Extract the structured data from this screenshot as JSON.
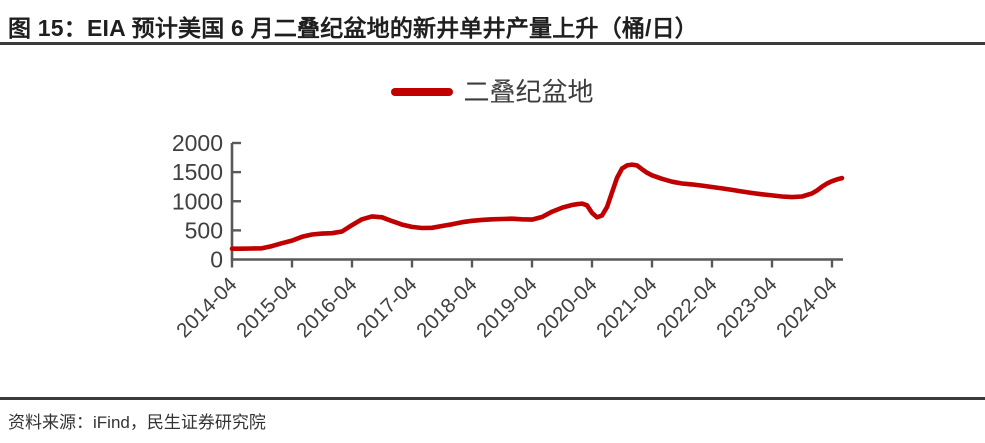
{
  "header": {
    "title": "图 15：EIA 预计美国 6 月二叠纪盆地的新井单井产量上升（桶/日）"
  },
  "legend": {
    "label": "二叠纪盆地",
    "color": "#c00000"
  },
  "footer": {
    "source": "资料来源：iFind，民生证券研究院"
  },
  "colors": {
    "series_red": "#c00000",
    "axis": "#595959",
    "tick_label": "#404040",
    "divider": "#3b3b3b"
  },
  "chart_data": {
    "type": "line",
    "title": "图 15：EIA 预计美国 6 月二叠纪盆地的新井单井产量上升（桶/日）",
    "xlabel": "",
    "ylabel": "",
    "unit": "桶/日",
    "grid": false,
    "legend_position": "top-center",
    "ylim": [
      0,
      2000
    ],
    "y_ticks": [
      0,
      500,
      1000,
      1500,
      2000
    ],
    "x_ticks": [
      "2014-04",
      "2015-04",
      "2016-04",
      "2017-04",
      "2018-04",
      "2019-04",
      "2020-04",
      "2021-04",
      "2022-04",
      "2023-04",
      "2024-04"
    ],
    "x_range": [
      "2014-04",
      "2024-06"
    ],
    "series": [
      {
        "name": "二叠纪盆地",
        "color": "#c00000",
        "points": [
          [
            "2014-04",
            185
          ],
          [
            "2014-06",
            186
          ],
          [
            "2014-08",
            188
          ],
          [
            "2014-10",
            192
          ],
          [
            "2014-12",
            230
          ],
          [
            "2015-02",
            280
          ],
          [
            "2015-04",
            325
          ],
          [
            "2015-06",
            390
          ],
          [
            "2015-08",
            430
          ],
          [
            "2015-10",
            445
          ],
          [
            "2015-12",
            452
          ],
          [
            "2016-02",
            480
          ],
          [
            "2016-04",
            590
          ],
          [
            "2016-06",
            690
          ],
          [
            "2016-08",
            740
          ],
          [
            "2016-10",
            725
          ],
          [
            "2016-12",
            660
          ],
          [
            "2017-02",
            600
          ],
          [
            "2017-04",
            560
          ],
          [
            "2017-06",
            540
          ],
          [
            "2017-08",
            545
          ],
          [
            "2017-10",
            575
          ],
          [
            "2017-12",
            605
          ],
          [
            "2018-02",
            640
          ],
          [
            "2018-04",
            665
          ],
          [
            "2018-06",
            680
          ],
          [
            "2018-08",
            690
          ],
          [
            "2018-10",
            695
          ],
          [
            "2018-12",
            700
          ],
          [
            "2019-02",
            690
          ],
          [
            "2019-04",
            685
          ],
          [
            "2019-06",
            730
          ],
          [
            "2019-08",
            820
          ],
          [
            "2019-10",
            890
          ],
          [
            "2019-12",
            935
          ],
          [
            "2020-01",
            950
          ],
          [
            "2020-02",
            960
          ],
          [
            "2020-03",
            930
          ],
          [
            "2020-04",
            800
          ],
          [
            "2020-05",
            725
          ],
          [
            "2020-06",
            755
          ],
          [
            "2020-07",
            900
          ],
          [
            "2020-08",
            1150
          ],
          [
            "2020-09",
            1400
          ],
          [
            "2020-10",
            1560
          ],
          [
            "2020-11",
            1615
          ],
          [
            "2020-12",
            1630
          ],
          [
            "2021-01",
            1615
          ],
          [
            "2021-02",
            1550
          ],
          [
            "2021-03",
            1490
          ],
          [
            "2021-04",
            1445
          ],
          [
            "2021-06",
            1385
          ],
          [
            "2021-08",
            1335
          ],
          [
            "2021-10",
            1305
          ],
          [
            "2021-12",
            1290
          ],
          [
            "2022-02",
            1268
          ],
          [
            "2022-04",
            1245
          ],
          [
            "2022-06",
            1220
          ],
          [
            "2022-08",
            1195
          ],
          [
            "2022-10",
            1168
          ],
          [
            "2022-12",
            1142
          ],
          [
            "2023-02",
            1120
          ],
          [
            "2023-04",
            1100
          ],
          [
            "2023-06",
            1082
          ],
          [
            "2023-08",
            1072
          ],
          [
            "2023-10",
            1082
          ],
          [
            "2023-12",
            1135
          ],
          [
            "2024-01",
            1185
          ],
          [
            "2024-02",
            1250
          ],
          [
            "2024-03",
            1305
          ],
          [
            "2024-04",
            1345
          ],
          [
            "2024-05",
            1375
          ],
          [
            "2024-06",
            1398
          ]
        ]
      }
    ]
  }
}
